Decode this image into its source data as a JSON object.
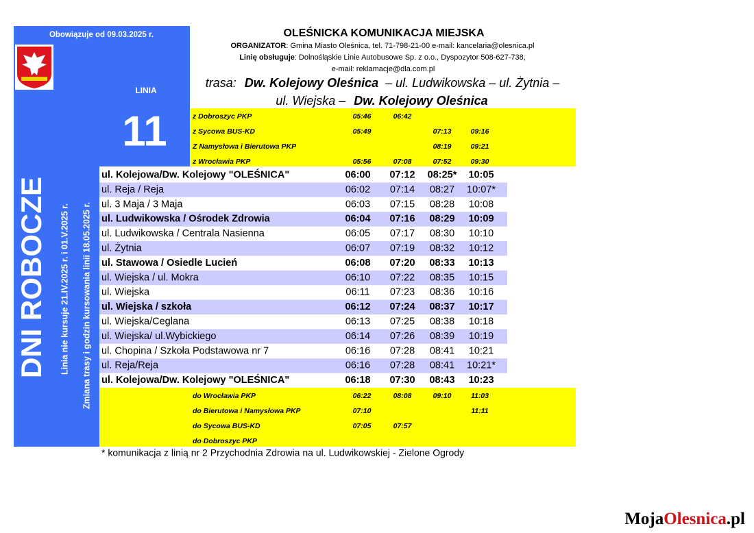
{
  "header": {
    "validity": "Obowiązuje od 09.03.2025 r.",
    "title": "OLEŚNICKA KOMUNIKACJA MIEJSKA",
    "organizer_label": "ORGANIZATOR",
    "organizer_text": ": Gmina Miasto Oleśnica, tel. 71-798-21-00 e-mail: kancelaria@olesnica.pl",
    "operator_label": "Linię obsługuje",
    "operator_text": ": Dolnośląskie Linie Autobusowe Sp. z o.o., Dyspozytor 508-627-738,",
    "operator_email": "e-mail: reklamacje@dla.com.pl"
  },
  "route": {
    "label": "trasa:",
    "line1_start": "Dw. Kolejowy Oleśnica",
    "line1_rest": "– ul. Ludwikowska – ul. Żytnia –",
    "line2_start": "ul. Wiejska –",
    "line2_end": "Dw. Kolejowy Oleśnica"
  },
  "line": {
    "label": "LINIA",
    "number": "11"
  },
  "side": {
    "days": "DNI ROBOCZE",
    "note1": "Linia nie kursuje 21.IV.2025 r. i 01.V.2025 r.",
    "note2": "Zmiana trasy i godzin kursowania linii 18.05.2025 r."
  },
  "arrivals": [
    {
      "from": "z Dobroszyc PKP",
      "times": [
        "05:46",
        "06:42",
        null,
        null
      ]
    },
    {
      "from": "z Sycowa BUS-KD",
      "times": [
        "05:49",
        null,
        "07:13",
        "09:16"
      ]
    },
    {
      "from": "Z Namysłowa i Bierutowa PKP",
      "times": [
        null,
        null,
        "08:19",
        "09:21"
      ]
    },
    {
      "from": "z Wrocławia PKP",
      "times": [
        "05:56",
        "07:08",
        "07:52",
        "09:30"
      ]
    }
  ],
  "stops": [
    {
      "name": "ul. Kolejowa/Dw. Kolejowy \"OLEŚNICA\"",
      "bold": true,
      "times": [
        "06:00",
        "07:12",
        "08:25*",
        "10:05"
      ]
    },
    {
      "name": "ul. Reja / Reja",
      "bold": false,
      "times": [
        "06:02",
        "07:14",
        "08:27",
        "10:07*"
      ]
    },
    {
      "name": "ul. 3 Maja / 3 Maja",
      "bold": false,
      "times": [
        "06:03",
        "07:15",
        "08:28",
        "10:08"
      ]
    },
    {
      "name": "ul. Ludwikowska / Ośrodek Zdrowia",
      "bold": true,
      "times": [
        "06:04",
        "07:16",
        "08:29",
        "10:09"
      ]
    },
    {
      "name": "ul. Ludwikowska / Centrala Nasienna",
      "bold": false,
      "times": [
        "06:05",
        "07:17",
        "08:30",
        "10:10"
      ]
    },
    {
      "name": "ul. Żytnia",
      "bold": false,
      "times": [
        "06:07",
        "07:19",
        "08:32",
        "10:12"
      ]
    },
    {
      "name": "ul. Stawowa / Osiedle Lucień",
      "bold": true,
      "times": [
        "06:08",
        "07:20",
        "08:33",
        "10:13"
      ]
    },
    {
      "name": "ul. Wiejska / ul. Mokra",
      "bold": false,
      "times": [
        "06:10",
        "07:22",
        "08:35",
        "10:15"
      ]
    },
    {
      "name": "ul. Wiejska",
      "bold": false,
      "times": [
        "06:11",
        "07:23",
        "08:36",
        "10:16"
      ]
    },
    {
      "name": "ul. Wiejska / szkoła",
      "bold": true,
      "times": [
        "06:12",
        "07:24",
        "08:37",
        "10:17"
      ]
    },
    {
      "name": "ul. Wiejska/Ceglana",
      "bold": false,
      "times": [
        "06:13",
        "07:25",
        "08:38",
        "10:18"
      ]
    },
    {
      "name": "ul. Wiejska/ ul.Wybickiego",
      "bold": false,
      "times": [
        "06:14",
        "07:26",
        "08:39",
        "10:19"
      ]
    },
    {
      "name": "ul. Chopina / Szkoła Podstawowa nr 7",
      "bold": false,
      "times": [
        "06:16",
        "07:28",
        "08:41",
        "10:21"
      ]
    },
    {
      "name": "ul. Reja/Reja",
      "bold": false,
      "times": [
        "06:16",
        "07:28",
        "08:41",
        "10:21*"
      ]
    },
    {
      "name": "ul. Kolejowa/Dw. Kolejowy \"OLEŚNICA\"",
      "bold": true,
      "times": [
        "06:18",
        "07:30",
        "08:43",
        "10:23"
      ]
    }
  ],
  "departures": [
    {
      "to": "do Wrocławia PKP",
      "times": [
        "06:22",
        "08:08",
        "09:10",
        "11:03"
      ]
    },
    {
      "to": "do Bierutowa i Namysłowa PKP",
      "times": [
        "07:10",
        null,
        null,
        "11:11"
      ]
    },
    {
      "to": "do Sycowa BUS-KD",
      "times": [
        "07:05",
        "07:57",
        null,
        null
      ]
    },
    {
      "to": "do Dobroszyc PKP",
      "times": [
        null,
        null,
        null,
        null
      ]
    }
  ],
  "footnote": "* komunikacja z linią nr 2 Przychodnia Zdrowia na ul. Ludwikowskiej - Zielone Ogrody",
  "watermark": {
    "part1": "Moja",
    "part2": "Olesnica",
    "part3": ".pl"
  }
}
